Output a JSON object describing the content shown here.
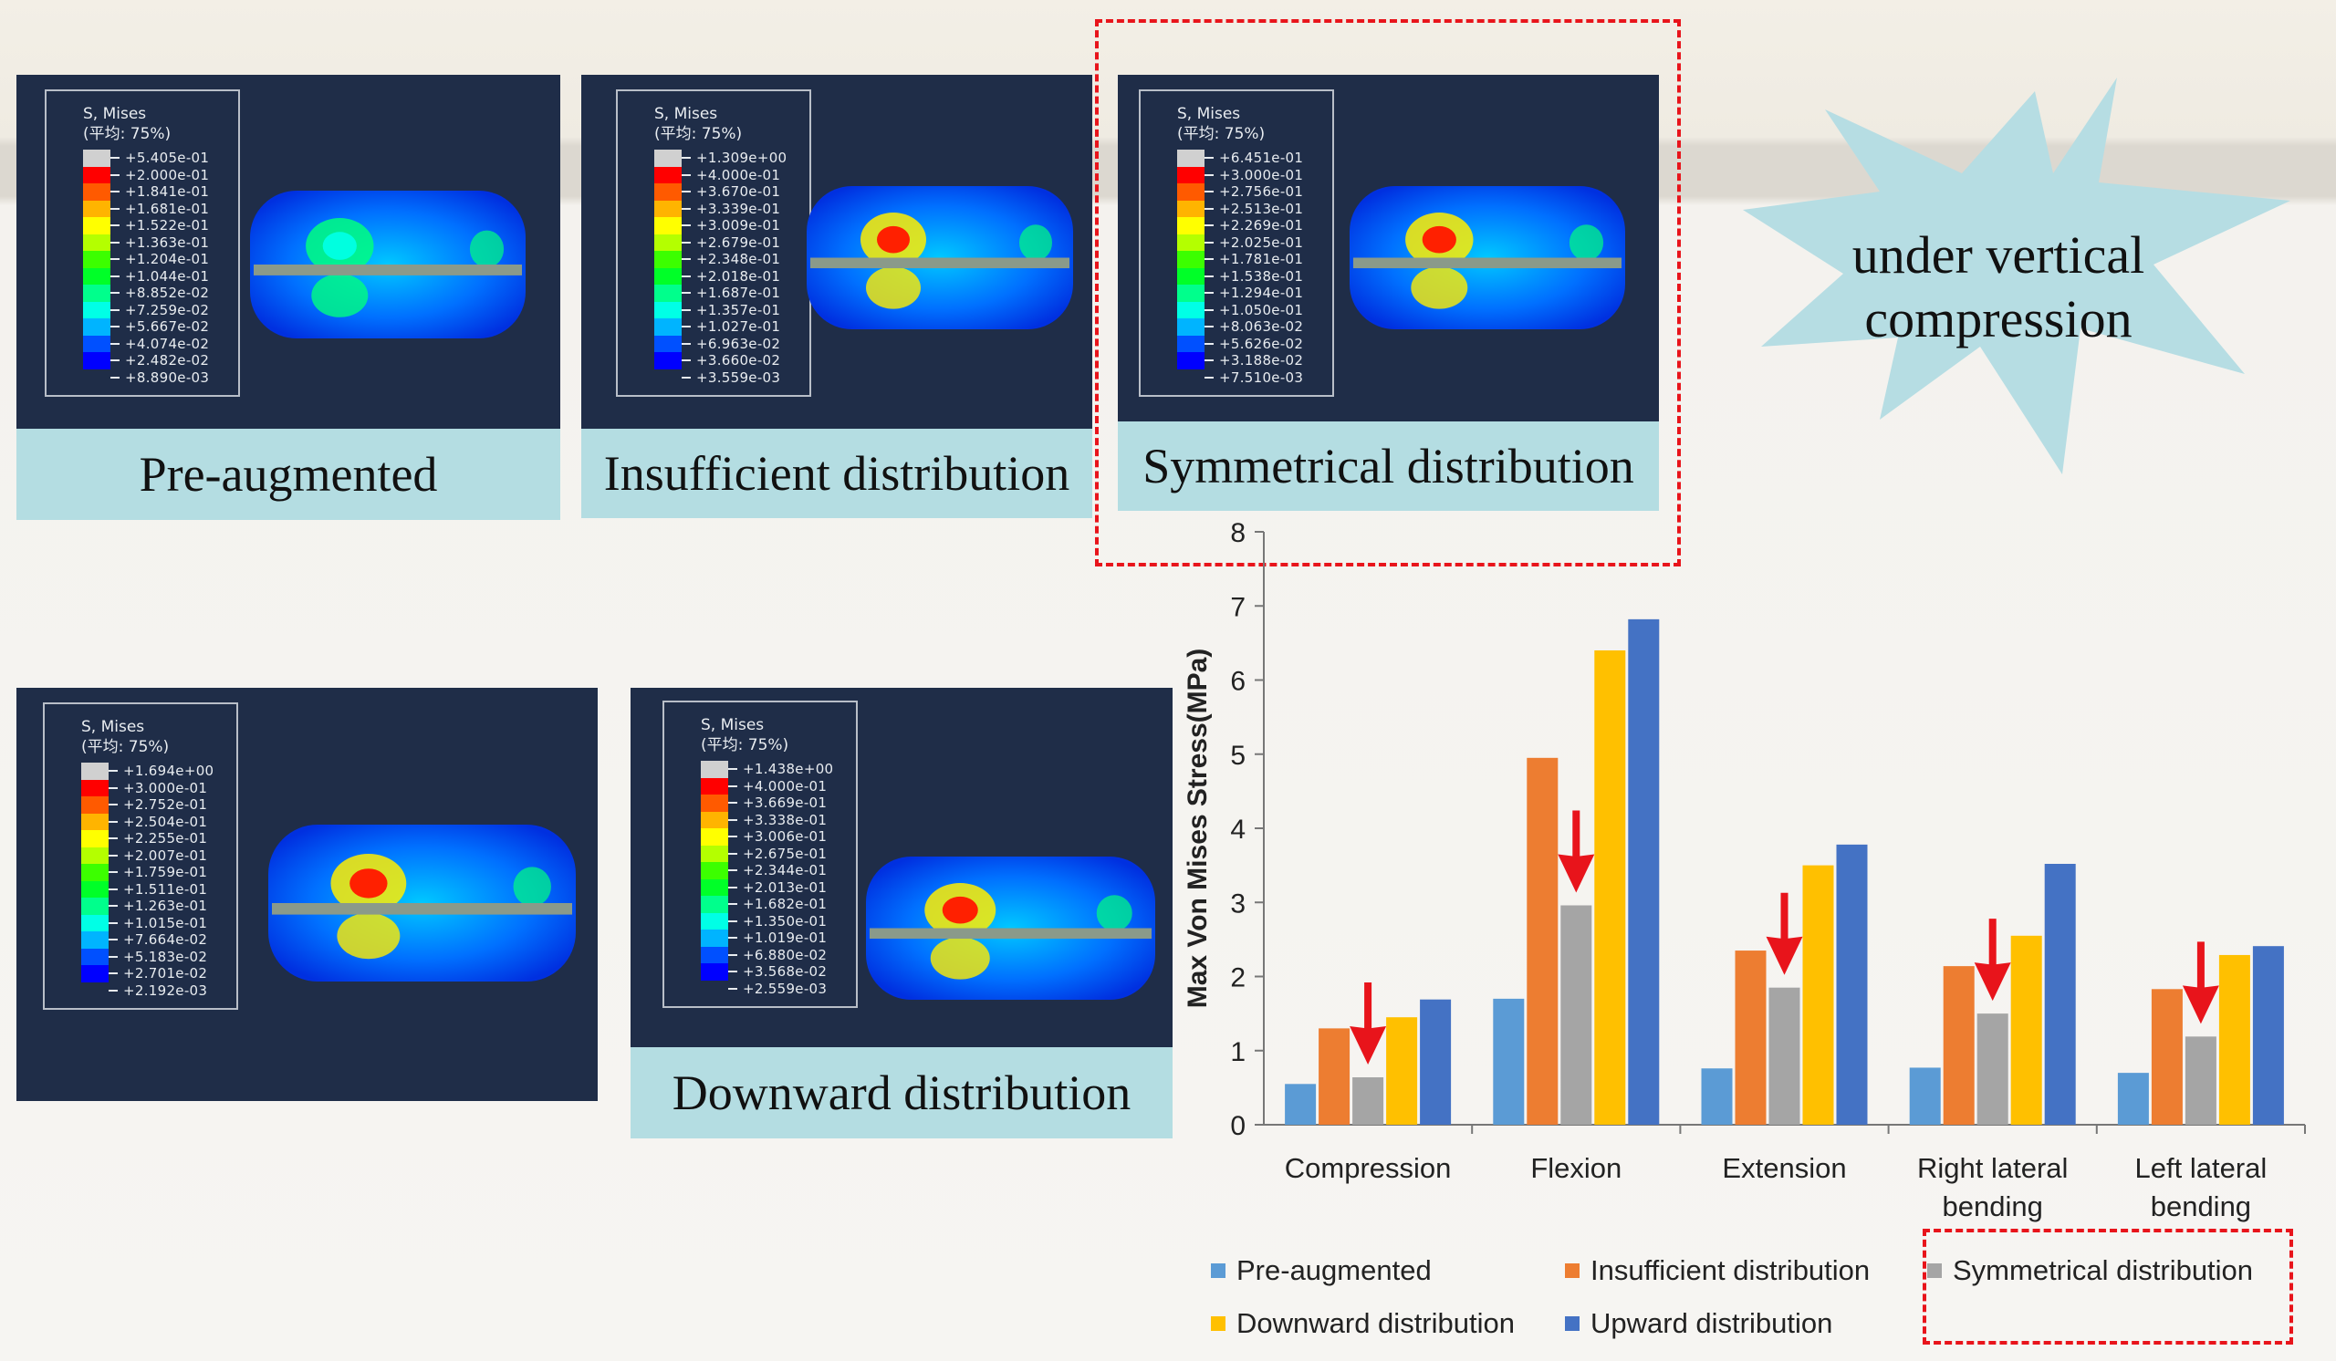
{
  "panels": [
    {
      "id": "pre-augmented",
      "caption": "Pre-augmented",
      "legend_title": "S, Mises",
      "legend_avg": "(平均: 75%)",
      "values": [
        "+5.405e-01",
        "+2.000e-01",
        "+1.841e-01",
        "+1.681e-01",
        "+1.522e-01",
        "+1.363e-01",
        "+1.204e-01",
        "+1.044e-01",
        "+8.852e-02",
        "+7.259e-02",
        "+5.667e-02",
        "+4.074e-02",
        "+2.482e-02",
        "+8.890e-03"
      ]
    },
    {
      "id": "insufficient",
      "caption": "Insufficient distribution",
      "legend_title": "S, Mises",
      "legend_avg": "(平均: 75%)",
      "values": [
        "+1.309e+00",
        "+4.000e-01",
        "+3.670e-01",
        "+3.339e-01",
        "+3.009e-01",
        "+2.679e-01",
        "+2.348e-01",
        "+2.018e-01",
        "+1.687e-01",
        "+1.357e-01",
        "+1.027e-01",
        "+6.963e-02",
        "+3.660e-02",
        "+3.559e-03"
      ]
    },
    {
      "id": "symmetrical",
      "caption": "Symmetrical distribution",
      "legend_title": "S, Mises",
      "legend_avg": "(平均: 75%)",
      "values": [
        "+6.451e-01",
        "+3.000e-01",
        "+2.756e-01",
        "+2.513e-01",
        "+2.269e-01",
        "+2.025e-01",
        "+1.781e-01",
        "+1.538e-01",
        "+1.294e-01",
        "+1.050e-01",
        "+8.063e-02",
        "+5.626e-02",
        "+3.188e-02",
        "+7.510e-03"
      ]
    },
    {
      "id": "upward",
      "caption": "",
      "legend_title": "S, Mises",
      "legend_avg": "(平均: 75%)",
      "values": [
        "+1.694e+00",
        "+3.000e-01",
        "+2.752e-01",
        "+2.504e-01",
        "+2.255e-01",
        "+2.007e-01",
        "+1.759e-01",
        "+1.511e-01",
        "+1.263e-01",
        "+1.015e-01",
        "+7.664e-02",
        "+5.183e-02",
        "+2.701e-02",
        "+2.192e-03"
      ]
    },
    {
      "id": "downward",
      "caption": "Downward distribution",
      "legend_title": "S, Mises",
      "legend_avg": "(平均: 75%)",
      "values": [
        "+1.438e+00",
        "+4.000e-01",
        "+3.669e-01",
        "+3.338e-01",
        "+3.006e-01",
        "+2.675e-01",
        "+2.344e-01",
        "+2.013e-01",
        "+1.682e-01",
        "+1.350e-01",
        "+1.019e-01",
        "+6.880e-02",
        "+3.568e-02",
        "+2.559e-03"
      ]
    }
  ],
  "contour_colors": [
    "#d0d0d0",
    "#ff0000",
    "#ff5a00",
    "#ffb400",
    "#ffff00",
    "#b4ff00",
    "#3cff00",
    "#00ff28",
    "#00ff8c",
    "#00ffe6",
    "#00b4ff",
    "#0050ff",
    "#0000ff"
  ],
  "burst_text": "under vertical compression",
  "chart_data": {
    "type": "bar",
    "title": "",
    "xlabel": "",
    "ylabel": "Max Von Mises Stress(MPa)",
    "ylim": [
      0,
      8
    ],
    "yticks": [
      "0",
      "1",
      "2",
      "3",
      "4",
      "5",
      "6",
      "7",
      "8"
    ],
    "categories": [
      "Compression",
      "Flexion",
      "Extension",
      "Right lateral bending",
      "Left lateral bending"
    ],
    "category_lines": [
      [
        "Compression"
      ],
      [
        "Flexion"
      ],
      [
        "Extension"
      ],
      [
        "Right lateral",
        "bending"
      ],
      [
        "Left lateral",
        "bending"
      ]
    ],
    "series": [
      {
        "name": "Pre-augmented",
        "color": "#5b9bd5",
        "values": [
          0.55,
          1.7,
          0.76,
          0.77,
          0.7
        ]
      },
      {
        "name": "Insufficient distribution",
        "color": "#ed7d31",
        "values": [
          1.3,
          4.95,
          2.35,
          2.14,
          1.83
        ]
      },
      {
        "name": "Symmetrical distribution",
        "color": "#a5a5a5",
        "values": [
          0.64,
          2.96,
          1.85,
          1.5,
          1.19
        ]
      },
      {
        "name": "Downward distribution",
        "color": "#ffc000",
        "values": [
          1.45,
          6.4,
          3.5,
          2.55,
          2.29
        ]
      },
      {
        "name": "Upward distribution",
        "color": "#4472c4",
        "values": [
          1.69,
          6.82,
          3.78,
          3.52,
          2.41
        ]
      }
    ],
    "legend_placement": "bottom"
  }
}
